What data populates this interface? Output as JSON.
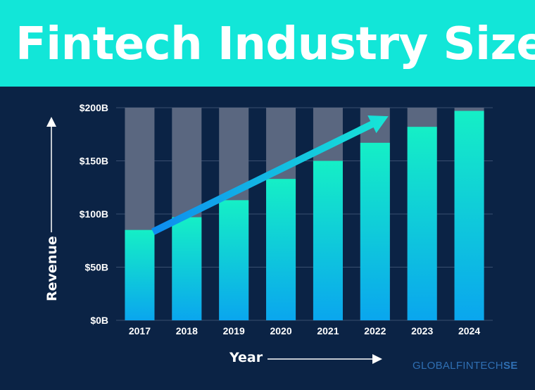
{
  "header": {
    "title": "Fintech Industry Size",
    "background": "#12e6d8"
  },
  "brand": {
    "text_main": "GLOBALFINTECH",
    "text_tail": "SE"
  },
  "colors": {
    "background": "#0b2345",
    "bar_top": "#15efc6",
    "bar_bottom": "#0aa6ee",
    "bar_remainder": "#5a6780",
    "trend_arrow_start": "#0d8cf0",
    "trend_arrow_end": "#17e6d6"
  },
  "chart_data": {
    "type": "bar",
    "categories": [
      "2017",
      "2018",
      "2019",
      "2020",
      "2021",
      "2022",
      "2023",
      "2024"
    ],
    "values": [
      85,
      97,
      113,
      133,
      150,
      167,
      182,
      197
    ],
    "units": "$B",
    "xlabel": "Year",
    "ylabel": "Revenue",
    "ylim": [
      0,
      200
    ],
    "yticks": [
      {
        "value": 0,
        "label": "$0B"
      },
      {
        "value": 50,
        "label": "$50B"
      },
      {
        "value": 100,
        "label": "$100B"
      },
      {
        "value": 150,
        "label": "$150B"
      },
      {
        "value": 200,
        "label": "$200B"
      }
    ],
    "grid": true,
    "background_bars_to_max": true,
    "trend_arrow": {
      "from_year": "2017",
      "to_year": "2022",
      "direction": "up"
    }
  }
}
